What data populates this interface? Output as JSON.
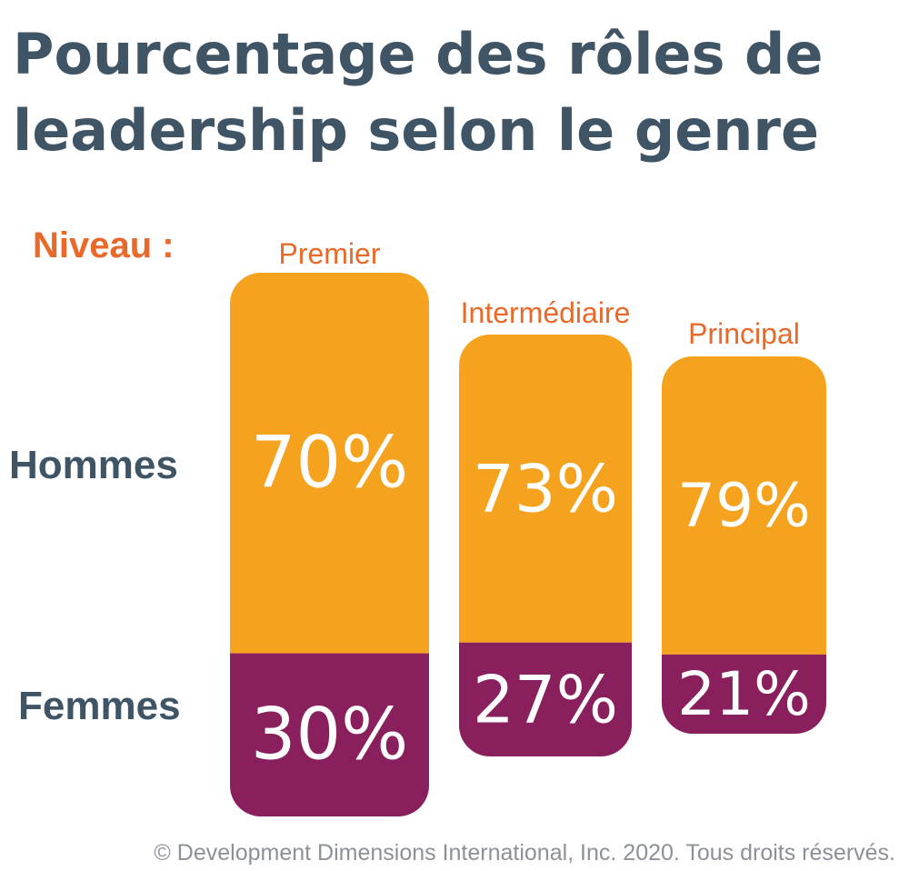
{
  "title_lines": [
    "Pourcentage des rôles de",
    "leadership selon le genre"
  ],
  "niveau_label": "Niveau :",
  "row_labels": {
    "hommes": "Hommes",
    "femmes": "Femmes"
  },
  "footer": "© Development Dimensions International, Inc. 2020. Tous droits réservés.",
  "colors": {
    "hommes": "#f5a21e",
    "femmes": "#8a1f5e",
    "title": "#3f5465",
    "accent": "#e8692a",
    "footer": "#8c9198"
  },
  "chart_data": {
    "type": "bar",
    "stacked": true,
    "title": "Pourcentage des rôles de leadership selon le genre",
    "categories": [
      "Premier",
      "Intermédiaire",
      "Principal"
    ],
    "series": [
      {
        "name": "Hommes",
        "values": [
          70,
          73,
          79
        ],
        "labels": [
          "70%",
          "73%",
          "79%"
        ]
      },
      {
        "name": "Femmes",
        "values": [
          30,
          27,
          21
        ],
        "labels": [
          "30%",
          "27%",
          "21%"
        ]
      }
    ],
    "ylim": [
      0,
      100
    ]
  }
}
